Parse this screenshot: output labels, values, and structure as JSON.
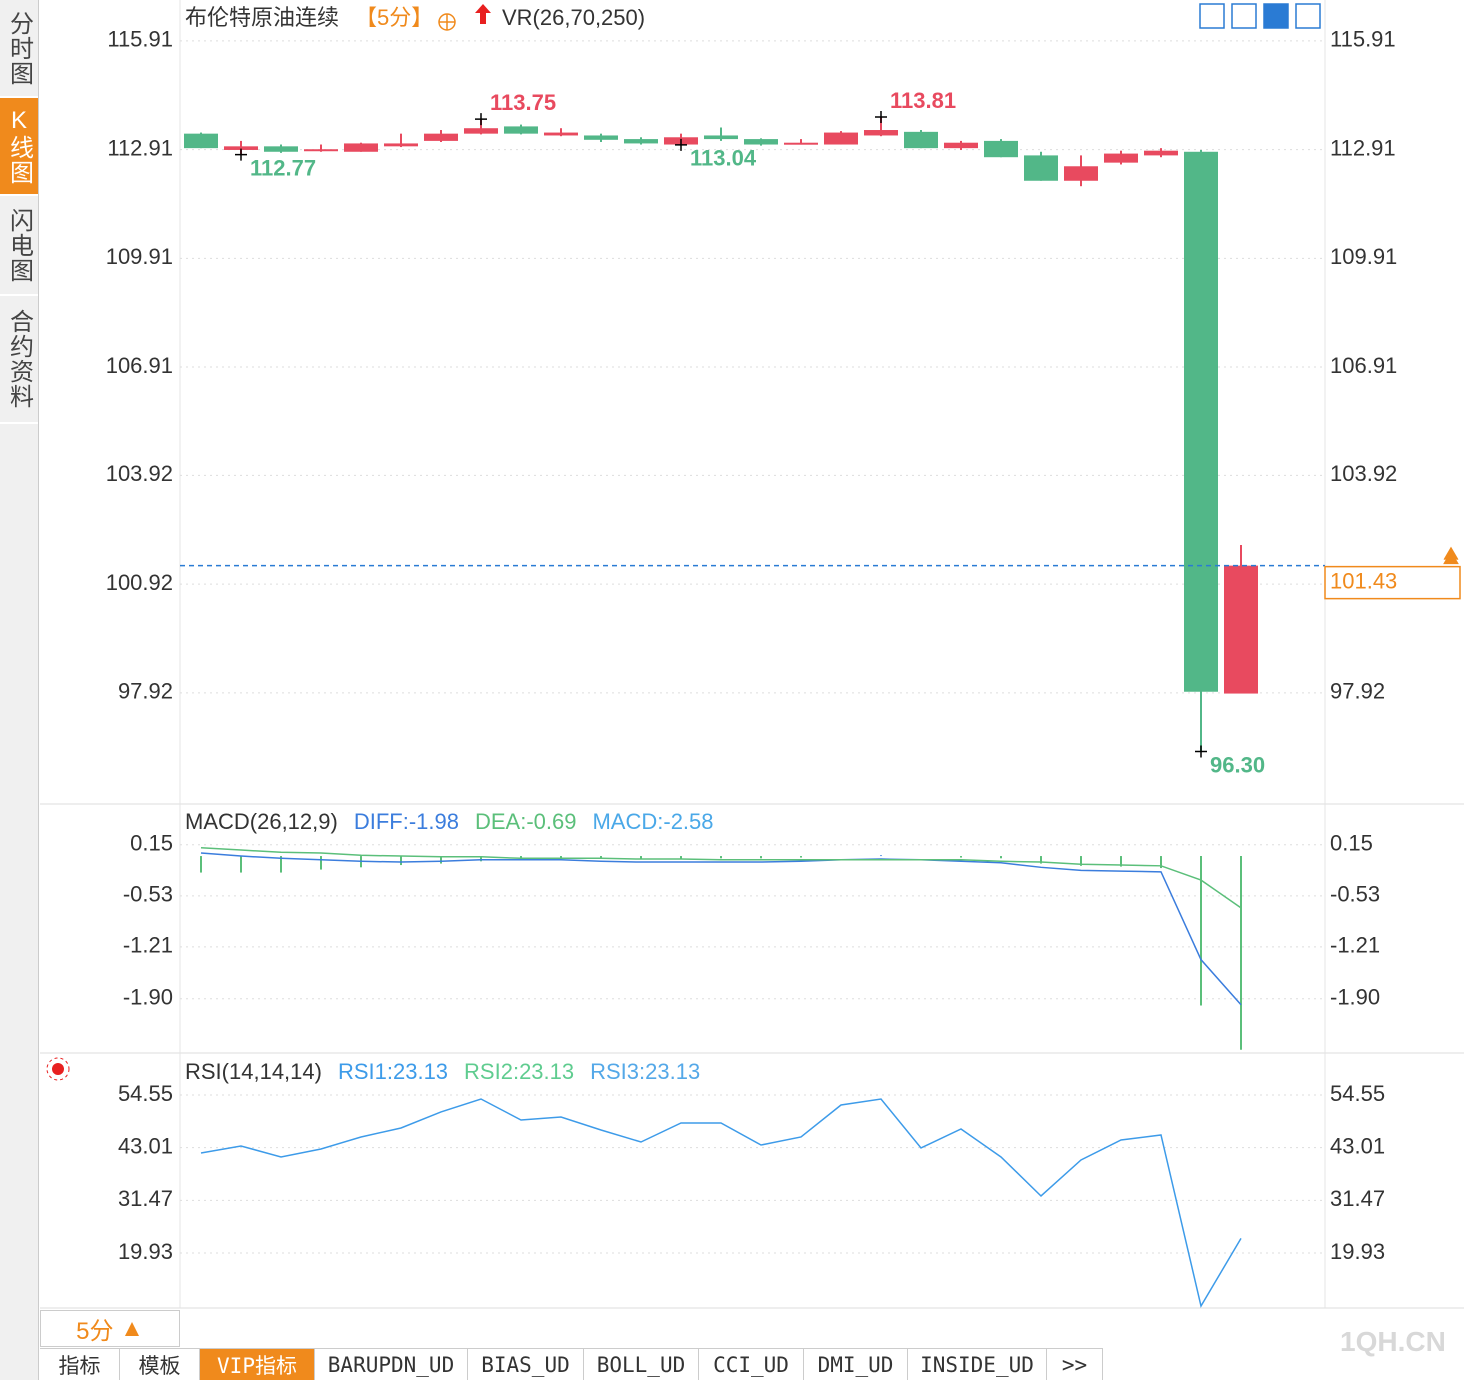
{
  "sidebar": [
    "分时图",
    "K线图",
    "闪电图",
    "合约资料"
  ],
  "header": {
    "title": "布伦特原油连续",
    "period": "【5分】",
    "indicator": "VR(26,70,250)"
  },
  "chart_data": [
    {
      "type": "candlestick",
      "open": [
        113.35,
        112.9,
        113.0,
        112.87,
        112.85,
        113.0,
        113.15,
        113.35,
        113.55,
        113.3,
        113.3,
        113.2,
        113.05,
        113.3,
        113.2,
        113.05,
        113.05,
        113.3,
        113.4,
        112.95,
        113.15,
        112.75,
        112.05,
        112.55,
        112.75,
        112.85,
        97.9
      ],
      "high": [
        113.38,
        113.15,
        113.05,
        113.05,
        113.1,
        113.35,
        113.45,
        113.75,
        113.6,
        113.5,
        113.35,
        113.25,
        113.35,
        113.52,
        113.22,
        113.2,
        113.42,
        113.81,
        113.45,
        113.15,
        113.2,
        112.85,
        112.75,
        112.88,
        112.95,
        112.9,
        102.0
      ],
      "low": [
        112.95,
        112.77,
        112.82,
        112.85,
        112.85,
        112.98,
        113.12,
        113.33,
        113.33,
        113.28,
        113.12,
        113.05,
        113.04,
        113.15,
        113.02,
        113.05,
        113.05,
        113.28,
        112.95,
        112.9,
        112.7,
        112.05,
        111.9,
        112.5,
        112.7,
        96.3,
        97.9
      ],
      "close": [
        112.95,
        113.0,
        112.85,
        112.92,
        113.08,
        113.08,
        113.35,
        113.5,
        113.35,
        113.38,
        113.18,
        113.08,
        113.25,
        113.2,
        113.05,
        113.1,
        113.38,
        113.45,
        112.95,
        113.1,
        112.7,
        112.05,
        112.45,
        112.8,
        112.88,
        97.95,
        101.43
      ],
      "high_labels": [
        null,
        null,
        null,
        null,
        null,
        null,
        null,
        "113.75",
        null,
        null,
        null,
        null,
        null,
        null,
        null,
        null,
        null,
        "113.81",
        null,
        null,
        null,
        null,
        null,
        null,
        null,
        null,
        null
      ],
      "low_labels": [
        null,
        "112.77",
        null,
        null,
        null,
        null,
        null,
        null,
        null,
        null,
        null,
        null,
        "113.04",
        null,
        null,
        null,
        null,
        null,
        null,
        null,
        null,
        null,
        null,
        null,
        null,
        "96.30",
        null
      ],
      "last_label": "101.43",
      "up_color": "#e84a5f",
      "down_color": "#52b788",
      "ylim": [
        94.88,
        116.9
      ],
      "yticks": [
        115.91,
        112.91,
        109.91,
        106.91,
        103.92,
        100.92,
        97.92
      ]
    },
    {
      "type": "macd",
      "title": "MACD(26,12,9)",
      "series": [
        {
          "legend_label": "DIFF:-1.98",
          "color": "#3b7ddd",
          "values": [
            0.04,
            0,
            -0.03,
            -0.05,
            -0.07,
            -0.08,
            -0.07,
            -0.05,
            -0.05,
            -0.05,
            -0.07,
            -0.08,
            -0.08,
            -0.08,
            -0.08,
            -0.07,
            -0.05,
            -0.04,
            -0.05,
            -0.07,
            -0.09,
            -0.15,
            -0.19,
            -0.2,
            -0.21,
            -1.38,
            -1.98
          ]
        },
        {
          "legend_label": "DEA:-0.69",
          "color": "#5bbf7a",
          "values": [
            0.11,
            0.08,
            0.05,
            0.04,
            0.01,
            0,
            -0.01,
            -0.01,
            -0.03,
            -0.03,
            -0.03,
            -0.04,
            -0.04,
            -0.05,
            -0.05,
            -0.05,
            -0.05,
            -0.05,
            -0.05,
            -0.05,
            -0.07,
            -0.08,
            -0.11,
            -0.12,
            -0.13,
            -0.32,
            -0.69
          ]
        },
        {
          "legend_label": "MACD:-2.58",
          "color": "#4aa8e8",
          "bar_color": "#5bbf7a",
          "values": [
            -0.22,
            -0.22,
            -0.22,
            -0.18,
            -0.15,
            -0.12,
            -0.1,
            -0.07,
            -0.05,
            -0.03,
            -0.03,
            -0.04,
            -0.04,
            -0.03,
            -0.03,
            -0.02,
            0,
            0.01,
            0,
            -0.02,
            -0.03,
            -0.1,
            -0.13,
            -0.14,
            -0.16,
            -1.99,
            -2.58
          ]
        }
      ],
      "ylim": [
        -2.61,
        0.68
      ],
      "yticks": [
        0.15,
        -0.53,
        -1.21,
        {
          "value": -1.9,
          "label": "-1.90"
        }
      ]
    },
    {
      "type": "line",
      "title": "RSI(14,14,14)",
      "series": [
        {
          "legend_label": "RSI1:23.13",
          "color": "#3d9be9",
          "values": [
            41.84,
            43.38,
            40.97,
            42.72,
            45.35,
            47.32,
            50.83,
            53.67,
            49.07,
            49.73,
            46.88,
            44.25,
            48.41,
            48.41,
            43.59,
            45.35,
            52.36,
            53.67,
            42.94,
            47.1,
            40.97,
            32.42,
            40.31,
            44.69,
            45.79,
            8.32,
            23.13
          ]
        }
      ],
      "legend": [
        {
          "label": "RSI2:23.13",
          "color": "#5fcc8f"
        },
        {
          "label": "RSI3:23.13",
          "color": "#54a8e8"
        }
      ],
      "ylim": [
        7.88,
        63.31
      ],
      "yticks": [
        54.55,
        43.01,
        31.47,
        19.93
      ]
    }
  ],
  "footer": {
    "period": "5分",
    "tabs": [
      "指标",
      "模板",
      "VIP指标",
      "BARUPDN_UD",
      "BIAS_UD",
      "BOLL_UD",
      "CCI_UD",
      "DMI_UD",
      "INSIDE_UD",
      ">>"
    ],
    "watermark": "1QH.CN"
  }
}
